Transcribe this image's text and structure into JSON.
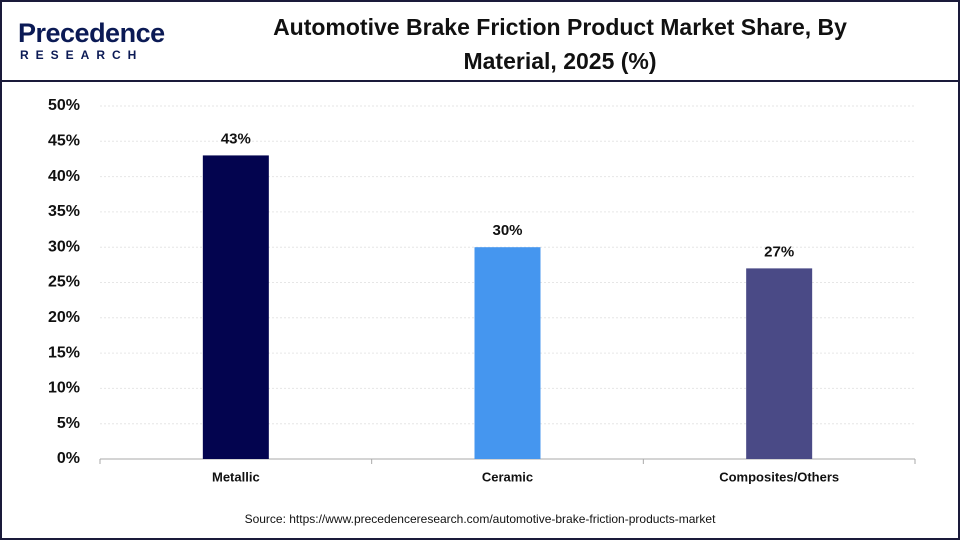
{
  "logo": {
    "name": "Precedence",
    "sub": "RESEARCH"
  },
  "chart_data": {
    "type": "bar",
    "title": "Automotive Brake Friction Product Market Share, By Material, 2025 (%)",
    "categories": [
      "Metallic",
      "Ceramic",
      "Composites/Others"
    ],
    "values": [
      43,
      30,
      27
    ],
    "value_labels": [
      "43%",
      "30%",
      "27%"
    ],
    "colors": [
      "#03044f",
      "#4596ef",
      "#4a4a86"
    ],
    "ylim": [
      0,
      50
    ],
    "yticks": [
      {
        "value": 0,
        "label": "0%"
      },
      {
        "value": 5,
        "label": "5%"
      },
      {
        "value": 10,
        "label": "10%"
      },
      {
        "value": 15,
        "label": "15%"
      },
      {
        "value": 20,
        "label": "20%"
      },
      {
        "value": 25,
        "label": "25%"
      },
      {
        "value": 30,
        "label": "30%"
      },
      {
        "value": 35,
        "label": "35%"
      },
      {
        "value": 40,
        "label": "40%"
      },
      {
        "value": 45,
        "label": "45%"
      },
      {
        "value": 50,
        "label": "50%"
      }
    ],
    "grid": true,
    "source": "Source: https://www.precedenceresearch.com/automotive-brake-friction-products-market"
  }
}
